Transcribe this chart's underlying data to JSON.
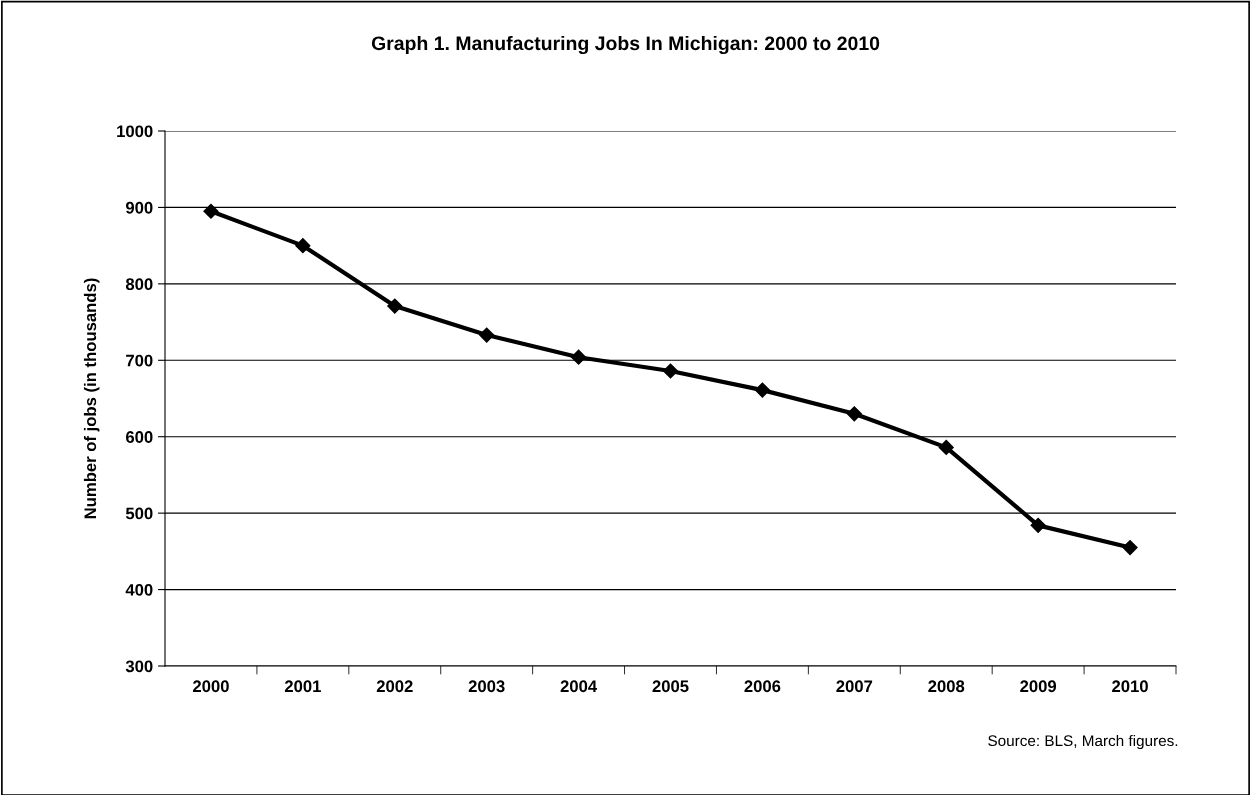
{
  "chart_data": {
    "type": "line",
    "title": "Graph 1. Manufacturing Jobs In Michigan: 2000 to 2010",
    "ylabel": "Number of jobs (in thousands)",
    "categories": [
      "2000",
      "2001",
      "2002",
      "2003",
      "2004",
      "2005",
      "2006",
      "2007",
      "2008",
      "2009",
      "2010"
    ],
    "series": [
      {
        "color": "#000000",
        "values": [
          895,
          850,
          771,
          733,
          704,
          686,
          661,
          630,
          586,
          484,
          455
        ]
      }
    ],
    "ylim": [
      300,
      1000
    ],
    "yticks": [
      300,
      400,
      500,
      600,
      700,
      800,
      900,
      1000
    ],
    "grid": "y",
    "legend": false,
    "marker": "diamond",
    "line_style": "solid",
    "annotations": [
      "Source: BLS, March figures."
    ]
  }
}
